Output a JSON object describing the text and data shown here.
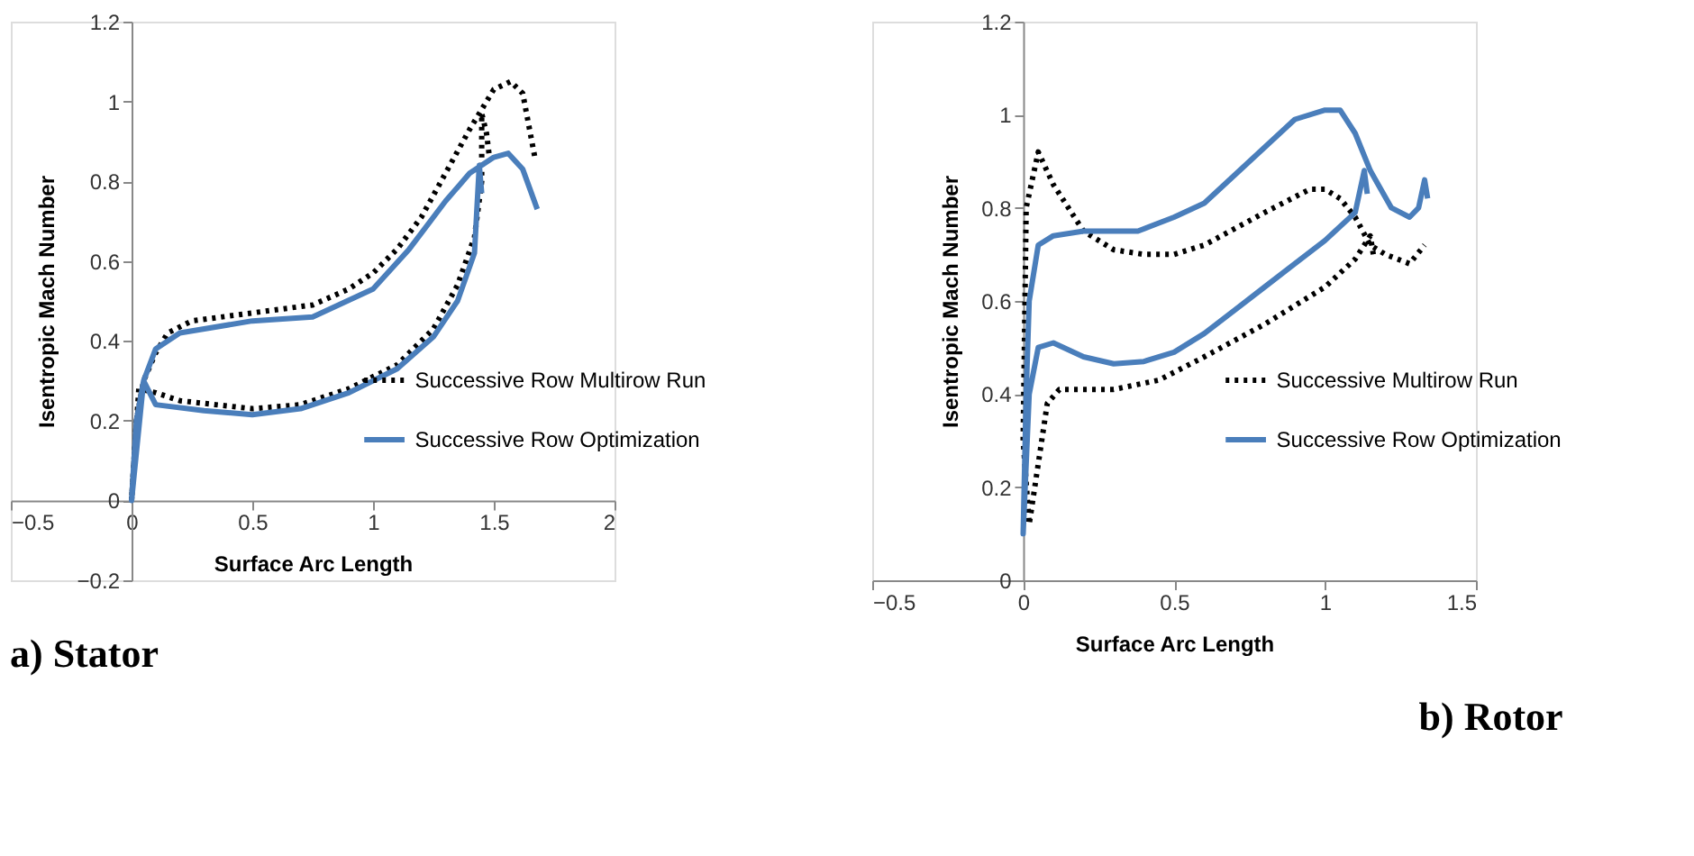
{
  "chart_data": [
    {
      "type": "line",
      "title": "a)  Stator",
      "xlabel": "Surface Arc Length",
      "ylabel": "Isentropic Mach Number",
      "xlim": [
        -0.5,
        2
      ],
      "xticks": [
        -0.5,
        0,
        0.5,
        1,
        1.5,
        2
      ],
      "ylim": [
        -0.2,
        1.2
      ],
      "yticks": [
        -0.2,
        0,
        0.2,
        0.4,
        0.6,
        0.8,
        1,
        1.2
      ],
      "grid": false,
      "marker": "none",
      "legend": "bottom right",
      "series": [
        {
          "name": "Successive Row Multirow Run",
          "color": "#000000",
          "line_style": "dotted",
          "x": [
            1.48,
            1.47,
            1.45,
            1.45,
            1.42,
            1.35,
            1.25,
            1.1,
            0.9,
            0.7,
            0.5,
            0.2,
            0.1,
            0.03,
            0.0,
            0.02,
            0.05,
            0.1,
            0.15,
            0.25,
            0.5,
            0.75,
            0.9,
            1.0,
            1.1,
            1.2,
            1.3,
            1.4,
            1.5,
            1.57,
            1.62,
            1.67
          ],
          "values": [
            0.87,
            0.92,
            0.97,
            0.8,
            0.66,
            0.54,
            0.43,
            0.34,
            0.28,
            0.24,
            0.23,
            0.25,
            0.27,
            0.28,
            0.0,
            0.2,
            0.3,
            0.37,
            0.42,
            0.45,
            0.47,
            0.49,
            0.53,
            0.57,
            0.63,
            0.71,
            0.82,
            0.93,
            1.03,
            1.05,
            1.02,
            0.86
          ]
        },
        {
          "name": "Successive Row Optimization",
          "color": "#4a7ebb",
          "line_style": "solid",
          "x": [
            1.45,
            1.44,
            1.42,
            1.35,
            1.25,
            1.1,
            0.9,
            0.7,
            0.5,
            0.3,
            0.1,
            0.05,
            0.0,
            0.02,
            0.05,
            0.1,
            0.2,
            0.5,
            0.75,
            1.0,
            1.15,
            1.3,
            1.4,
            1.5,
            1.56,
            1.62,
            1.68
          ],
          "values": [
            0.77,
            0.84,
            0.62,
            0.5,
            0.41,
            0.33,
            0.27,
            0.23,
            0.215,
            0.225,
            0.24,
            0.3,
            0.0,
            0.2,
            0.3,
            0.38,
            0.42,
            0.45,
            0.46,
            0.53,
            0.63,
            0.75,
            0.82,
            0.86,
            0.87,
            0.83,
            0.73
          ]
        }
      ]
    },
    {
      "type": "line",
      "title": "b) Rotor",
      "xlabel": "Surface Arc Length",
      "ylabel": "Isentropic Mach Number",
      "xlim": [
        -0.5,
        1.5
      ],
      "xticks": [
        -0.5,
        0,
        0.5,
        1,
        1.5
      ],
      "ylim": [
        0,
        1.2
      ],
      "yticks": [
        0,
        0.2,
        0.4,
        0.6,
        0.8,
        1,
        1.2
      ],
      "grid": false,
      "marker": "none",
      "legend": "bottom right",
      "series": [
        {
          "name": "Successive Multirow Run",
          "color": "#000000",
          "line_style": "dotted",
          "x": [
            1.16,
            1.15,
            1.1,
            1.0,
            0.8,
            0.6,
            0.45,
            0.3,
            0.12,
            0.08,
            0.05,
            0.02,
            0.0,
            0.01,
            0.05,
            0.1,
            0.2,
            0.3,
            0.4,
            0.5,
            0.6,
            0.8,
            0.95,
            1.0,
            1.05,
            1.1,
            1.15,
            1.2,
            1.28,
            1.33
          ],
          "values": [
            0.7,
            0.74,
            0.69,
            0.63,
            0.55,
            0.48,
            0.43,
            0.41,
            0.41,
            0.38,
            0.25,
            0.12,
            0.3,
            0.8,
            0.92,
            0.85,
            0.75,
            0.71,
            0.7,
            0.7,
            0.72,
            0.79,
            0.84,
            0.84,
            0.82,
            0.78,
            0.72,
            0.7,
            0.68,
            0.72
          ]
        },
        {
          "name": "Successive Row Optimization",
          "color": "#4a7ebb",
          "line_style": "solid",
          "x": [
            1.14,
            1.13,
            1.1,
            1.0,
            0.9,
            0.8,
            0.7,
            0.6,
            0.5,
            0.4,
            0.3,
            0.2,
            0.1,
            0.05,
            0.02,
            0.0,
            0.01,
            0.02,
            0.05,
            0.1,
            0.2,
            0.38,
            0.5,
            0.6,
            0.7,
            0.8,
            0.9,
            1.0,
            1.05,
            1.1,
            1.15,
            1.22,
            1.28,
            1.31,
            1.33,
            1.34
          ],
          "values": [
            0.83,
            0.88,
            0.79,
            0.73,
            0.68,
            0.63,
            0.58,
            0.53,
            0.49,
            0.47,
            0.465,
            0.48,
            0.51,
            0.5,
            0.4,
            0.1,
            0.4,
            0.6,
            0.72,
            0.74,
            0.75,
            0.75,
            0.78,
            0.81,
            0.87,
            0.93,
            0.99,
            1.01,
            1.01,
            0.96,
            0.88,
            0.8,
            0.78,
            0.8,
            0.86,
            0.82
          ]
        }
      ]
    }
  ]
}
